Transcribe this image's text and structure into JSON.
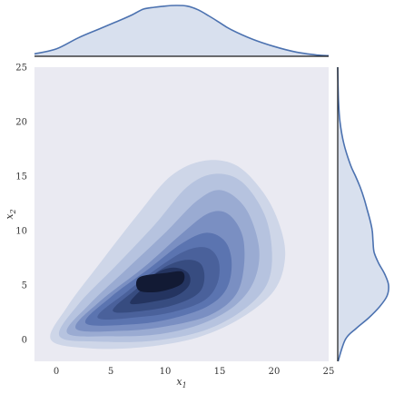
{
  "chart_data": {
    "type": "kde-jointplot",
    "title": "",
    "xlabel": "x_1",
    "ylabel": "x_2",
    "xlabel_main": "x",
    "xlabel_sub": "1",
    "ylabel_main": "x",
    "ylabel_sub": "2",
    "xlim": [
      -2,
      25
    ],
    "ylim": [
      -2,
      25
    ],
    "xticks": [
      "0",
      "5",
      "10",
      "15",
      "20",
      "25"
    ],
    "yticks": [
      "0",
      "5",
      "10",
      "15",
      "20",
      "25"
    ],
    "xtick_values": [
      0,
      5,
      10,
      15,
      20,
      25
    ],
    "ytick_values": [
      0,
      5,
      10,
      15,
      20,
      25
    ],
    "joint": {
      "peak": [
        8.8,
        5.4
      ],
      "levels": 8,
      "contours": [
        [
          [
            -0.5,
            0.0
          ],
          [
            3,
            -0.8
          ],
          [
            8,
            -0.7
          ],
          [
            13,
            0.2
          ],
          [
            17,
            2.0
          ],
          [
            20,
            4.5
          ],
          [
            21,
            7.5
          ],
          [
            20.5,
            10.5
          ],
          [
            19,
            13.5
          ],
          [
            16.5,
            16.0
          ],
          [
            13.5,
            16.4
          ],
          [
            10.5,
            15.0
          ],
          [
            7.5,
            11.5
          ],
          [
            4,
            7.0
          ],
          [
            1,
            3.0
          ]
        ],
        [
          [
            0.3,
            0.3
          ],
          [
            4,
            -0.2
          ],
          [
            9,
            -0.1
          ],
          [
            13.5,
            0.8
          ],
          [
            17,
            2.6
          ],
          [
            19.3,
            5.0
          ],
          [
            19.8,
            8.0
          ],
          [
            19.1,
            11.5
          ],
          [
            17,
            14.5
          ],
          [
            14.5,
            15.2
          ],
          [
            12,
            14.0
          ],
          [
            9,
            10.5
          ],
          [
            5.5,
            6.8
          ],
          [
            2,
            3.2
          ]
        ],
        [
          [
            1,
            0.6
          ],
          [
            5,
            0.3
          ],
          [
            9.5,
            0.5
          ],
          [
            13.5,
            1.5
          ],
          [
            16.5,
            3.2
          ],
          [
            18.2,
            5.5
          ],
          [
            18.6,
            8.5
          ],
          [
            17.4,
            12.0
          ],
          [
            15.2,
            13.7
          ],
          [
            13,
            12.8
          ],
          [
            10,
            9.8
          ],
          [
            6.5,
            6.5
          ],
          [
            3,
            3.2
          ]
        ],
        [
          [
            1.8,
            1.0
          ],
          [
            6,
            0.8
          ],
          [
            10,
            1.2
          ],
          [
            14,
            2.2
          ],
          [
            16.4,
            4.0
          ],
          [
            17.2,
            6.5
          ],
          [
            17.1,
            9.5
          ],
          [
            15.8,
            11.5
          ],
          [
            14,
            11.6
          ],
          [
            11.5,
            9.7
          ],
          [
            8,
            6.6
          ],
          [
            4,
            3.5
          ]
        ],
        [
          [
            2.7,
            1.5
          ],
          [
            7,
            1.4
          ],
          [
            10.5,
            1.9
          ],
          [
            13.8,
            3.0
          ],
          [
            15.6,
            4.6
          ],
          [
            16.1,
            7.0
          ],
          [
            15.5,
            9.0
          ],
          [
            13.8,
            9.8
          ],
          [
            11.5,
            8.8
          ],
          [
            8.5,
            6.5
          ],
          [
            5,
            3.9
          ]
        ],
        [
          [
            3.8,
            2.0
          ],
          [
            8,
            2.1
          ],
          [
            11,
            2.6
          ],
          [
            13.6,
            3.6
          ],
          [
            14.8,
            5.2
          ],
          [
            14.9,
            7.2
          ],
          [
            13.9,
            8.4
          ],
          [
            12,
            8.2
          ],
          [
            9.5,
            6.7
          ],
          [
            6.5,
            4.4
          ]
        ],
        [
          [
            5.2,
            2.6
          ],
          [
            8.5,
            2.7
          ],
          [
            11.2,
            3.3
          ],
          [
            13.1,
            4.3
          ],
          [
            13.6,
            5.7
          ],
          [
            13.2,
            7.0
          ],
          [
            11.8,
            7.3
          ],
          [
            9.7,
            6.5
          ],
          [
            7.3,
            4.6
          ]
        ],
        [
          [
            6.8,
            3.3
          ],
          [
            9,
            3.5
          ],
          [
            11,
            4.0
          ],
          [
            12.2,
            5.0
          ],
          [
            12.1,
            6.1
          ],
          [
            10.8,
            6.6
          ],
          [
            9.2,
            6.1
          ],
          [
            7.8,
            4.6
          ]
        ],
        [
          [
            7.6,
            4.5
          ],
          [
            9.5,
            4.4
          ],
          [
            11.5,
            5.1
          ],
          [
            11.6,
            6.2
          ],
          [
            10.0,
            6.1
          ],
          [
            7.6,
            5.7
          ]
        ]
      ]
    },
    "marginal_x": {
      "x": [
        -2,
        0,
        2,
        4,
        6,
        7,
        8,
        9,
        10,
        11,
        12,
        13,
        14,
        15,
        16,
        18,
        20,
        22,
        24,
        25
      ],
      "density": [
        0.004,
        0.012,
        0.03,
        0.045,
        0.06,
        0.068,
        0.077,
        0.08,
        0.082,
        0.083,
        0.082,
        0.076,
        0.066,
        0.055,
        0.044,
        0.028,
        0.016,
        0.007,
        0.002,
        0.001
      ]
    },
    "marginal_y": {
      "y": [
        -2,
        0,
        1,
        2,
        3,
        4,
        5,
        6,
        7,
        8,
        9,
        10,
        11,
        12,
        13,
        14,
        15,
        16,
        18,
        20,
        22,
        25
      ],
      "density": [
        0.001,
        0.02,
        0.048,
        0.082,
        0.11,
        0.13,
        0.134,
        0.124,
        0.108,
        0.096,
        0.093,
        0.091,
        0.085,
        0.077,
        0.069,
        0.059,
        0.047,
        0.034,
        0.016,
        0.006,
        0.002,
        0.0
      ]
    },
    "colors": {
      "plot_bg": "#eaeaf2",
      "line": "#4c72b0",
      "fill": "#4c72b0",
      "levels": [
        "#ced6e8",
        "#b6c3df",
        "#9aabd2",
        "#7a8fc2",
        "#5b74b0",
        "#4a619b",
        "#374c80",
        "#243460",
        "#121a34"
      ]
    }
  }
}
